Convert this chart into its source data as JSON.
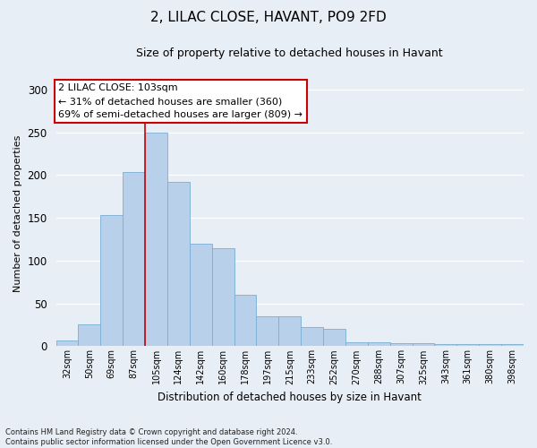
{
  "title1": "2, LILAC CLOSE, HAVANT, PO9 2FD",
  "title2": "Size of property relative to detached houses in Havant",
  "xlabel": "Distribution of detached houses by size in Havant",
  "ylabel": "Number of detached properties",
  "categories": [
    "32sqm",
    "50sqm",
    "69sqm",
    "87sqm",
    "105sqm",
    "124sqm",
    "142sqm",
    "160sqm",
    "178sqm",
    "197sqm",
    "215sqm",
    "233sqm",
    "252sqm",
    "270sqm",
    "288sqm",
    "307sqm",
    "325sqm",
    "343sqm",
    "361sqm",
    "380sqm",
    "398sqm"
  ],
  "values": [
    7,
    26,
    153,
    203,
    250,
    192,
    120,
    115,
    60,
    35,
    35,
    22,
    20,
    5,
    5,
    4,
    4,
    3,
    3,
    3,
    2
  ],
  "bar_color": "#b8d0ea",
  "bar_edge_color": "#7aadd4",
  "vline_x_index": 4,
  "vline_color": "#cc0000",
  "annotation_text": "2 LILAC CLOSE: 103sqm\n← 31% of detached houses are smaller (360)\n69% of semi-detached houses are larger (809) →",
  "annotation_box_color": "white",
  "annotation_box_edge_color": "#cc0000",
  "footnote": "Contains HM Land Registry data © Crown copyright and database right 2024.\nContains public sector information licensed under the Open Government Licence v3.0.",
  "ylim": [
    0,
    310
  ],
  "yticks": [
    0,
    50,
    100,
    150,
    200,
    250,
    300
  ],
  "background_color": "#e8eef5",
  "grid_color": "white"
}
